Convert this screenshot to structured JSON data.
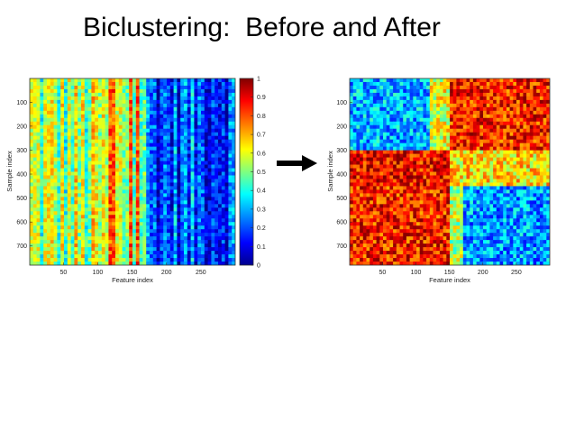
{
  "slide": {
    "title": "Biclustering:  Before and After"
  },
  "colorbar": {
    "ticks": [
      "0",
      "0.1",
      "0.2",
      "0.3",
      "0.4",
      "0.5",
      "0.6",
      "0.7",
      "0.8",
      "0.9",
      "1"
    ],
    "range": [
      0,
      1
    ],
    "colormap": [
      "#00008f",
      "#0000ff",
      "#00ffff",
      "#ffff00",
      "#ff0000",
      "#800000"
    ]
  },
  "arrow": {
    "color": "#000000",
    "direction": "right"
  },
  "chart_data": [
    {
      "type": "heatmap",
      "title": "",
      "xlabel": "Feature index",
      "ylabel": "Sample index",
      "xlim": [
        1,
        300
      ],
      "ylim": [
        1,
        780
      ],
      "xticks": [
        50,
        100,
        150,
        200,
        250
      ],
      "yticks": [
        100,
        200,
        300,
        400,
        500,
        600,
        700
      ],
      "value_range": [
        0,
        1
      ],
      "pattern": "unclustered: column-wise stripes, mostly mid values (0.3-0.7) for features 1-170, low values (0-0.3) for features 170-300",
      "colorbar": true
    },
    {
      "type": "heatmap",
      "title": "",
      "xlabel": "Feature index",
      "ylabel": "Sample index",
      "xlim": [
        1,
        300
      ],
      "ylim": [
        1,
        780
      ],
      "xticks": [
        50,
        100,
        150,
        200,
        250
      ],
      "yticks": [
        100,
        200,
        300,
        400,
        500,
        600,
        700
      ],
      "value_range": [
        0,
        1
      ],
      "pattern": "biclustered: block structure; low block rows 1-300 x features 1-120, high block rows 1-300 x features 150-300, high block rows 300-780 x features 1-150, low block rows 450-780 x features 170-300",
      "colorbar": false
    }
  ]
}
